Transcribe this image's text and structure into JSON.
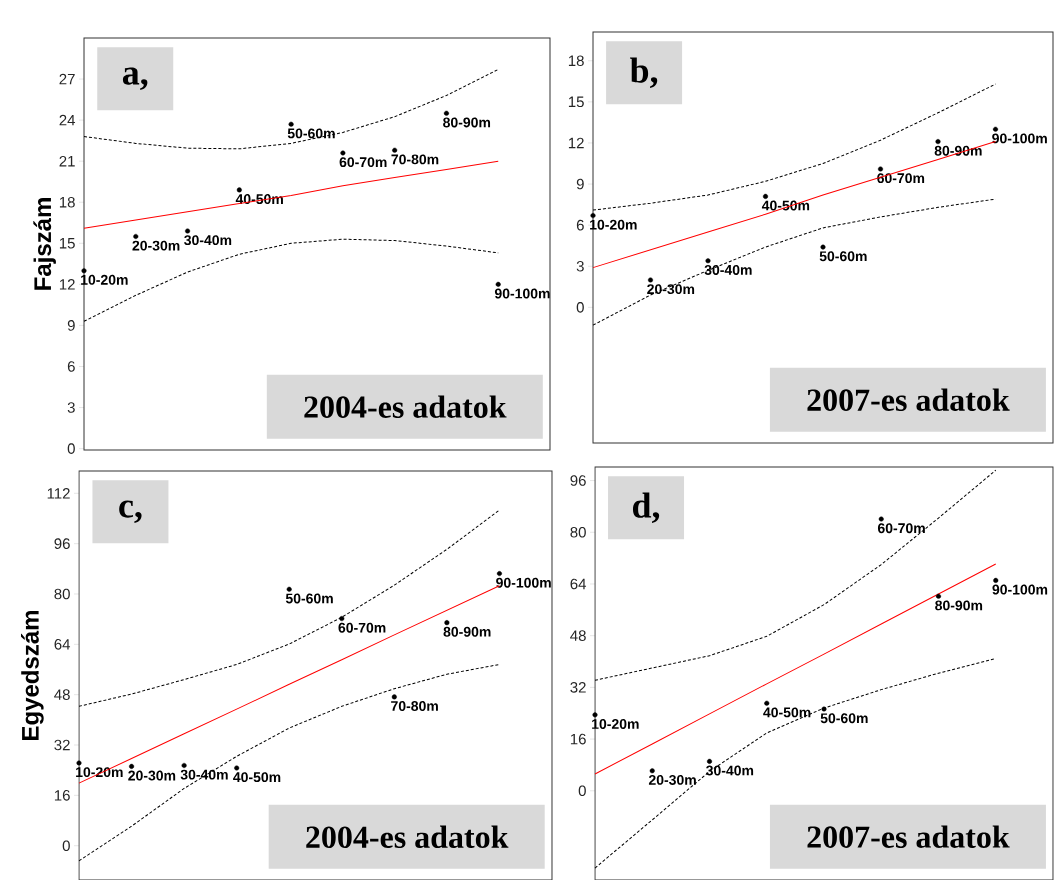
{
  "chart_data": [
    {
      "type": "scatter",
      "title": "a,",
      "subtitle": "2004-es adatok",
      "ylabel": "Fajszám",
      "categories": [
        null,
        null,
        null,
        null,
        null,
        null,
        null,
        null,
        null
      ],
      "ylim": [
        -0.1,
        30
      ],
      "yticks": [
        0,
        3,
        6,
        9,
        12,
        15,
        18,
        21,
        24,
        27
      ],
      "tick_labels": "y",
      "series": [
        {
          "marker": "circle",
          "color": "#000000",
          "values": [
            13.0,
            15.5,
            15.9,
            18.9,
            23.7,
            21.6,
            21.8,
            24.5,
            12.0
          ],
          "value_labels": [
            "10-20m",
            "20-30m",
            "30-40m",
            "40-50m",
            "50-60m",
            "60-70m",
            "70-80m",
            "80-90m",
            "90-100m"
          ]
        },
        {
          "type": "line",
          "marker": "none",
          "line_style": "solid",
          "color": "#ff0000",
          "values": [
            16.1,
            16.7,
            17.3,
            17.9,
            18.5,
            19.2,
            19.8,
            20.4,
            21.0
          ]
        },
        {
          "type": "line",
          "marker": "none",
          "line_style": "dashed",
          "color": "#000000",
          "values": [
            22.8,
            22.3,
            21.95,
            21.9,
            22.3,
            23.1,
            24.25,
            25.8,
            27.7
          ]
        },
        {
          "type": "line",
          "marker": "none",
          "line_style": "dashed",
          "color": "#000000",
          "values": [
            9.3,
            11.2,
            12.9,
            14.2,
            15.0,
            15.3,
            15.2,
            14.8,
            14.3
          ]
        }
      ]
    },
    {
      "type": "scatter",
      "title": "b,",
      "subtitle": "2007-es adatok",
      "categories": [
        null,
        null,
        null,
        null,
        null,
        null,
        null,
        null
      ],
      "ylim": [
        -9.9,
        20.1
      ],
      "yticks": [
        0,
        3,
        6,
        9,
        12,
        15,
        18
      ],
      "tick_labels": "y",
      "series": [
        {
          "marker": "circle",
          "color": "#000000",
          "values": [
            6.7,
            2.0,
            3.4,
            8.1,
            4.4,
            10.1,
            12.1,
            13.0
          ],
          "value_labels": [
            "10-20m",
            "20-30m",
            "30-40m",
            "40-50m",
            "50-60m",
            "60-70m",
            "80-90m",
            "90-100m"
          ]
        },
        {
          "type": "line",
          "marker": "none",
          "line_style": "solid",
          "color": "#ff0000",
          "values": [
            2.9,
            4.2,
            5.5,
            6.8,
            8.2,
            9.5,
            10.8,
            12.1
          ]
        },
        {
          "type": "line",
          "marker": "none",
          "line_style": "dashed",
          "color": "#000000",
          "values": [
            7.1,
            7.6,
            8.2,
            9.2,
            10.5,
            12.2,
            14.2,
            16.3
          ]
        },
        {
          "type": "line",
          "marker": "none",
          "line_style": "dashed",
          "color": "#000000",
          "values": [
            -1.3,
            0.9,
            2.7,
            4.4,
            5.8,
            6.6,
            7.3,
            7.9
          ]
        }
      ]
    },
    {
      "type": "scatter",
      "title": "c,",
      "subtitle": "2004-es adatok",
      "ylabel": "Egyedszám",
      "categories": [
        null,
        null,
        null,
        null,
        null,
        null,
        null,
        null,
        null
      ],
      "ylim": [
        -10.9,
        119.1
      ],
      "yticks": [
        0,
        16,
        32,
        48,
        64,
        80,
        96,
        112
      ],
      "tick_labels": "y",
      "series": [
        {
          "marker": "circle",
          "color": "#000000",
          "values": [
            26.3,
            25.2,
            25.5,
            24.7,
            81.5,
            72.2,
            47.3,
            70.9,
            86.5
          ],
          "value_labels": [
            "10-20m",
            "20-30m",
            "30-40m",
            "40-50m",
            "50-60m",
            "60-70m",
            "70-80m",
            "80-90m",
            "90-100m"
          ]
        },
        {
          "type": "line",
          "marker": "none",
          "line_style": "solid",
          "color": "#ff0000",
          "values": [
            19.9,
            27.7,
            35.6,
            43.4,
            51.3,
            59.1,
            67.0,
            74.8,
            82.6
          ]
        },
        {
          "type": "line",
          "marker": "none",
          "line_style": "dashed",
          "color": "#000000",
          "values": [
            44.3,
            48.2,
            52.8,
            57.6,
            64.1,
            72.6,
            82.8,
            94.2,
            106.7
          ]
        },
        {
          "type": "line",
          "marker": "none",
          "line_style": "dashed",
          "color": "#000000",
          "values": [
            -4.8,
            6.2,
            18.2,
            28.4,
            37.4,
            44.3,
            49.9,
            54.5,
            57.6
          ]
        }
      ]
    },
    {
      "type": "scatter",
      "title": "d,",
      "subtitle": "2007-es adatok",
      "categories": [
        null,
        null,
        null,
        null,
        null,
        null,
        null,
        null
      ],
      "ylim": [
        -27.6,
        100.2
      ],
      "yticks": [
        0,
        16,
        32,
        48,
        64,
        80,
        96
      ],
      "tick_labels": "y",
      "series": [
        {
          "marker": "circle",
          "color": "#000000",
          "values": [
            23.5,
            6.2,
            9.1,
            27.1,
            25.3,
            84.1,
            60.2,
            65.1
          ],
          "value_labels": [
            "10-20m",
            "20-30m",
            "30-40m",
            "40-50m",
            "50-60m",
            "60-70m",
            "80-90m",
            "90-100m"
          ]
        },
        {
          "type": "line",
          "marker": "none",
          "line_style": "solid",
          "color": "#ff0000",
          "values": [
            5.2,
            14.5,
            23.8,
            33.1,
            42.3,
            51.6,
            60.9,
            70.2
          ]
        },
        {
          "type": "line",
          "marker": "none",
          "line_style": "dashed",
          "color": "#000000",
          "values": [
            34.2,
            38.0,
            41.8,
            47.8,
            57.6,
            70.0,
            84.4,
            99.2
          ]
        },
        {
          "type": "line",
          "marker": "none",
          "line_style": "dashed",
          "color": "#000000",
          "values": [
            -23.9,
            -9.0,
            6.0,
            17.9,
            25.6,
            31.3,
            36.4,
            40.9
          ]
        }
      ]
    }
  ]
}
